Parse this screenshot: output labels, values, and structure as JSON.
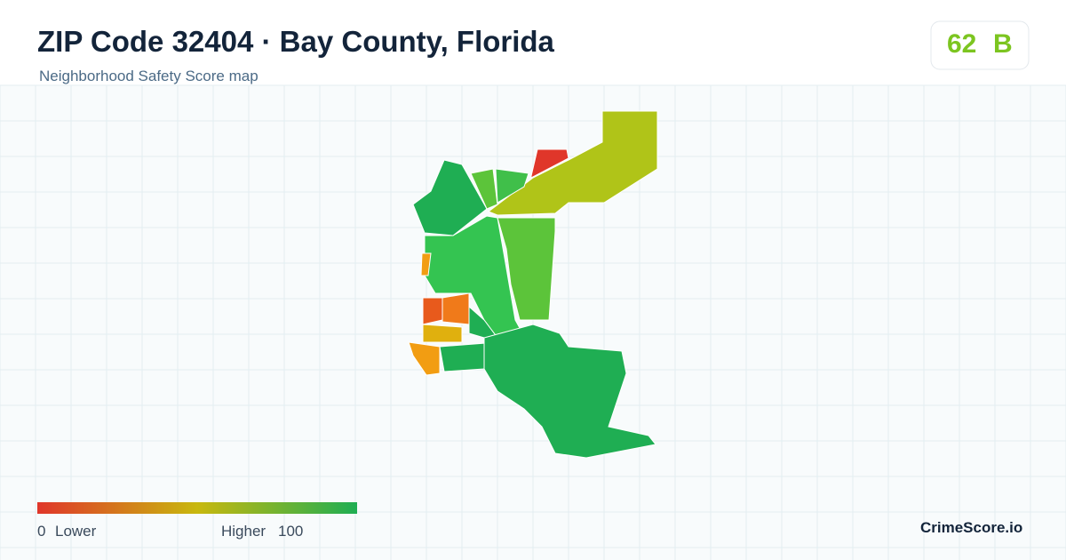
{
  "header": {
    "title": "ZIP Code 32404 · Bay County, Florida",
    "subtitle": "Neighborhood Safety Score map"
  },
  "score": {
    "value": 62,
    "grade": "B"
  },
  "legend": {
    "min": 0,
    "min_label": "Lower",
    "max_label": "Higher",
    "max": 100
  },
  "brand": "CrimeScore.io"
}
